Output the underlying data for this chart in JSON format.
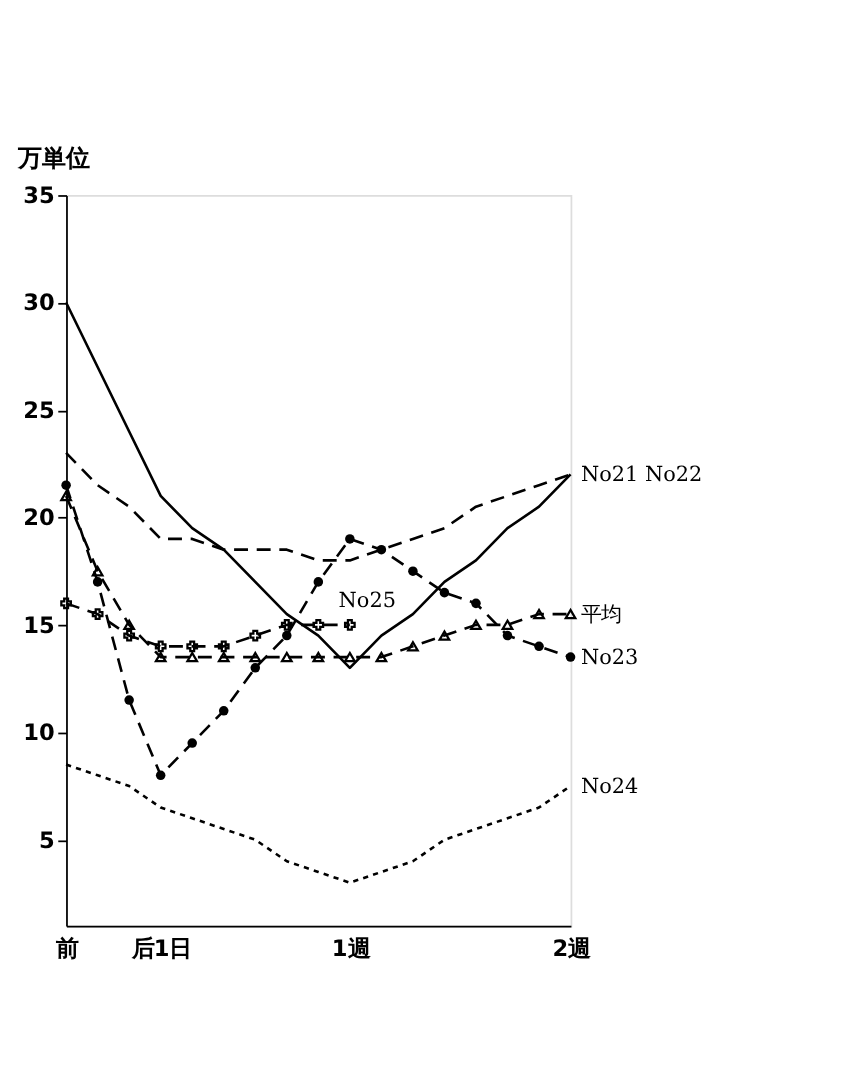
{
  "chart_data": {
    "type": "line",
    "ylabel": "万単位",
    "categories": [
      "前",
      null,
      null,
      "后1日",
      null,
      null,
      null,
      null,
      null,
      "1週",
      null,
      null,
      null,
      null,
      null,
      null,
      "2週"
    ],
    "ylim": [
      1,
      35
    ],
    "yticks": [
      5,
      10,
      15,
      20,
      25,
      30,
      35
    ],
    "grid": false,
    "series": [
      {
        "name": "No21",
        "color": "#000000",
        "line_style": "solid",
        "marker": "none",
        "values": [
          30,
          27,
          24,
          21,
          19.5,
          18.5,
          17,
          15.5,
          14.5,
          13,
          14.5,
          15.5,
          17,
          18,
          19.5,
          20.5,
          22
        ]
      },
      {
        "name": "No22",
        "color": "#000000",
        "line_style": "dashed",
        "marker": "none",
        "values": [
          23,
          21.5,
          20.5,
          19,
          19,
          18.5,
          18.5,
          18.5,
          18,
          18,
          18.5,
          19,
          19.5,
          20.5,
          21,
          21.5,
          22
        ]
      },
      {
        "name": "No23",
        "color": "#000000",
        "line_style": "dashed",
        "marker": "circle",
        "values": [
          21.5,
          17,
          11.5,
          8,
          9.5,
          11,
          13,
          14.5,
          17,
          19,
          18.5,
          17.5,
          16.5,
          16,
          14.5,
          14,
          13.5
        ]
      },
      {
        "name": "No24",
        "color": "#000000",
        "line_style": "dotted",
        "marker": "none",
        "values": [
          8.5,
          8,
          7.5,
          6.5,
          6,
          5.5,
          5,
          4,
          3.5,
          3,
          3.5,
          4,
          5,
          5.5,
          6,
          6.5,
          7.5
        ]
      },
      {
        "name": "No25",
        "color": "#000000",
        "line_style": "dashed",
        "marker": "cross",
        "values": [
          16,
          15.5,
          14.5,
          14,
          14,
          14,
          14.5,
          15,
          15,
          15,
          null,
          null,
          null,
          null,
          null,
          null,
          null
        ]
      },
      {
        "name": "平均",
        "color": "#000000",
        "line_style": "dashed",
        "marker": "triangle",
        "values": [
          21,
          17.5,
          15,
          13.5,
          13.5,
          13.5,
          13.5,
          13.5,
          13.5,
          13.5,
          13.5,
          14,
          14.5,
          15,
          15,
          15.5,
          15.5
        ]
      }
    ]
  }
}
